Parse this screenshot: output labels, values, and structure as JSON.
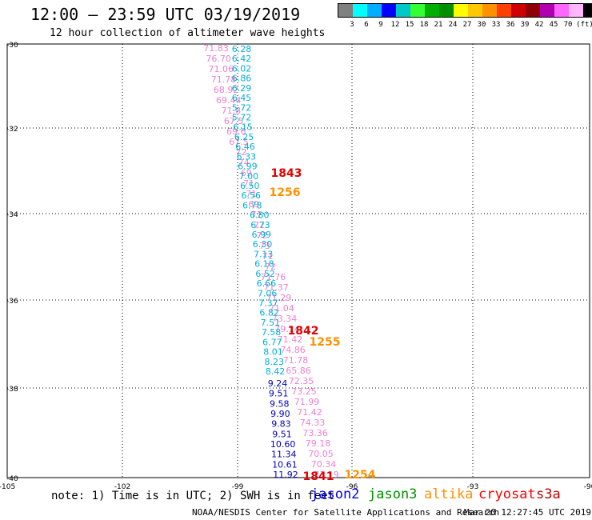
{
  "title": "12:00 – 23:59 UTC 03/19/2019",
  "subtitle": "12 hour collection of altimeter wave heights",
  "color_scale": {
    "unit": "(ft)",
    "colors": [
      "#808080",
      "#00ffff",
      "#00b0ff",
      "#0000ff",
      "#00c8c8",
      "#33ff33",
      "#00b000",
      "#009000",
      "#ffff00",
      "#ffc800",
      "#ff9000",
      "#ff4000",
      "#d00000",
      "#900000",
      "#b000b0",
      "#ff66ff",
      "#ffb6ff",
      "#000000"
    ],
    "ticks": [
      "3",
      "6",
      "9",
      "12",
      "15",
      "18",
      "21",
      "24",
      "27",
      "30",
      "33",
      "36",
      "39",
      "42",
      "45",
      "70"
    ]
  },
  "axes": {
    "lat_labels": [
      "-30",
      "-32",
      "-34",
      "-36",
      "-38",
      "-40"
    ],
    "lon_labels": [
      "-105",
      "-102",
      "-99",
      "-96",
      "-93",
      "-90"
    ]
  },
  "tracks": {
    "pink": {
      "color": "#f080d0",
      "values": [
        "71.83",
        "76.70",
        "71.06",
        "71.78",
        "68.92",
        "69.44",
        "71.8",
        "67.5",
        "69.6",
        "67.5",
        "72",
        "74",
        "69",
        "71",
        "71",
        "69",
        "71",
        "72",
        "72",
        "73",
        "71",
        "72",
        "71.76",
        "71.37",
        "71.29",
        "71.04",
        "73.34",
        "79.14",
        "71.42",
        "74.86",
        "71.78",
        "65.86",
        "72.35",
        "73.25",
        "71.99",
        "71.42",
        "74.33",
        "73.36",
        "79.18",
        "70.05",
        "70.34",
        "73.19"
      ]
    },
    "cyan": {
      "color": "#00b0d8",
      "values": [
        "6.28",
        "6.42",
        "6.02",
        "6.86",
        "6.29",
        "6.45",
        "5.72",
        "5.72",
        "6.15",
        "6.25",
        "6.46",
        "6.33",
        "6.99",
        "7.00",
        "6.50",
        "6.56",
        "6.78",
        "6.80",
        "6.73",
        "6.99",
        "6.30",
        "7.13",
        "6.18",
        "6.52",
        "6.66",
        "7.06",
        "7.37",
        "6.82",
        "7.51",
        "7.58",
        "6.77",
        "8.01",
        "8.23",
        "8.42"
      ]
    },
    "blue": {
      "color": "#0000c0",
      "values": [
        "9.24",
        "9.51",
        "9.58",
        "9.90",
        "9.83",
        "9.51",
        "10.60",
        "11.34",
        "10.61",
        "11.92"
      ]
    },
    "times": [
      {
        "text": "1843",
        "color": "#e00000"
      },
      {
        "text": "1256",
        "color": "#ff9000"
      },
      {
        "text": "1842",
        "color": "#e00000"
      },
      {
        "text": "1255",
        "color": "#ff9000"
      },
      {
        "text": "1841",
        "color": "#e00000"
      },
      {
        "text": "1254",
        "color": "#ff9000"
      }
    ]
  },
  "note": "note:  1) Time is in UTC; 2) SWH is in feet",
  "satellites": [
    {
      "name": "jason2",
      "color": "#0000ff"
    },
    {
      "name": "jason3",
      "color": "#009000"
    },
    {
      "name": "altika",
      "color": "#ff9000"
    },
    {
      "name": "cryosat",
      "color": "#ff0000"
    },
    {
      "name": "s3a",
      "color": "#c00000"
    }
  ],
  "footer": "NOAA/NESDIS Center for Satellite Applications and Research",
  "timestamp": "Mar 20 12:27:45 UTC 2019"
}
